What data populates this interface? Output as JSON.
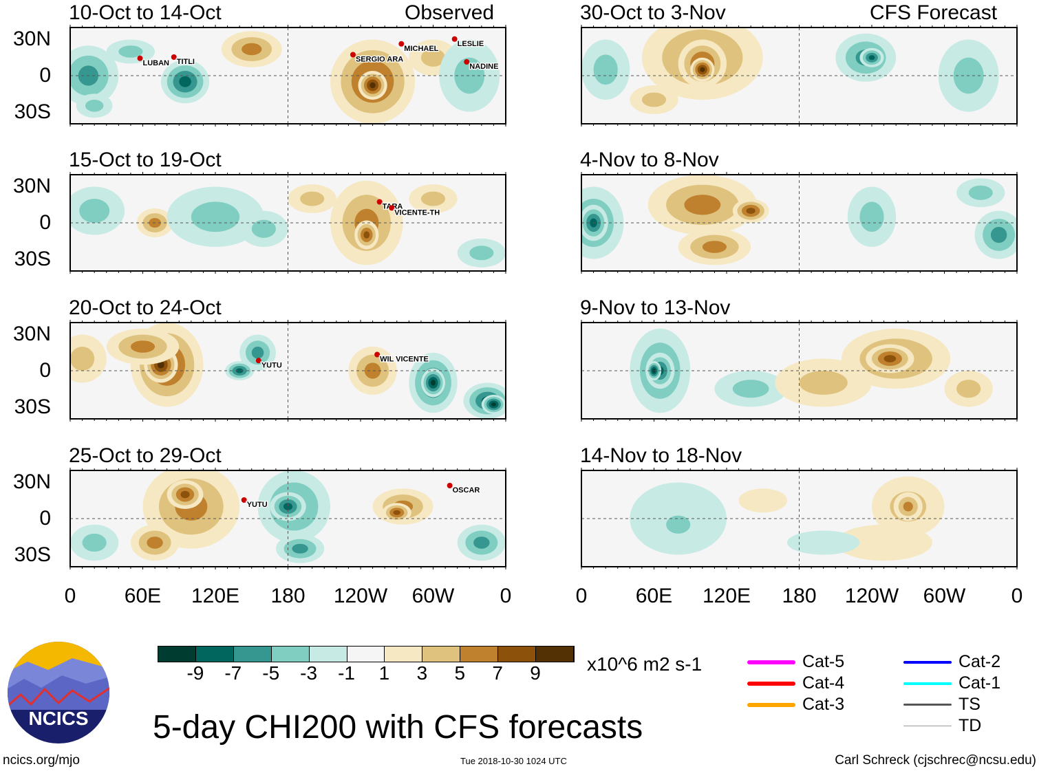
{
  "header": {
    "left_label": "Observed",
    "right_label": "CFS Forecast"
  },
  "axes": {
    "y_ticks": [
      "30N",
      "0",
      "30S"
    ],
    "x_ticks": [
      "0",
      "60E",
      "120E",
      "180",
      "120W",
      "60W",
      "0"
    ]
  },
  "colorbar": {
    "colors": [
      "#003C30",
      "#01665E",
      "#35978F",
      "#80CDC1",
      "#C7EAE5",
      "#F5F5F5",
      "#F6E8C3",
      "#DFC27D",
      "#BF812D",
      "#8C510A",
      "#543005"
    ],
    "labels": [
      "-9",
      "-7",
      "-5",
      "-3",
      "-1",
      "1",
      "3",
      "5",
      "7",
      "9"
    ],
    "units": "x10^6 m2 s-1"
  },
  "title": "5-day CHI200 with CFS forecasts",
  "footer": {
    "site": "ncics.org/mjo",
    "timestamp": "Tue 2018-10-30 1024 UTC",
    "author": "Carl Schreck (cjschrec@ncsu.edu)",
    "logo_text": "NCICS"
  },
  "storm_legend": [
    {
      "label": "Cat-5",
      "color": "#FF00FF",
      "width": 6
    },
    {
      "label": "Cat-4",
      "color": "#FF0000",
      "width": 6
    },
    {
      "label": "Cat-3",
      "color": "#FFA500",
      "width": 6
    },
    {
      "label": "Cat-2",
      "color": "#0000FF",
      "width": 4
    },
    {
      "label": "Cat-1",
      "color": "#00FFFF",
      "width": 4
    },
    {
      "label": "TS",
      "color": "#555555",
      "width": 3
    },
    {
      "label": "TD",
      "color": "#999999",
      "width": 1
    }
  ],
  "chart_data": {
    "type": "heatmap",
    "xlim": [
      0,
      360
    ],
    "ylim": [
      -40,
      40
    ],
    "panels": [
      {
        "title": "10-Oct to 14-Oct",
        "source": "Observed",
        "blobs": [
          [
            15,
            0,
            25,
            25,
            -5
          ],
          [
            95,
            -5,
            20,
            18,
            -7
          ],
          [
            50,
            20,
            20,
            10,
            -3
          ],
          [
            150,
            22,
            25,
            15,
            5
          ],
          [
            250,
            -5,
            35,
            35,
            7
          ],
          [
            250,
            -8,
            12,
            12,
            9
          ],
          [
            300,
            15,
            20,
            15,
            3
          ],
          [
            330,
            0,
            25,
            30,
            -3
          ],
          [
            20,
            -25,
            15,
            10,
            -3
          ]
        ],
        "storms": [
          {
            "name": "LUBAN",
            "lon": 60,
            "lat": 11
          },
          {
            "name": "TITLI",
            "lon": 88,
            "lat": 12
          },
          {
            "name": "MICHAEL",
            "lon": 276,
            "lat": 23
          },
          {
            "name": "SERGIO ARA",
            "lon": 236,
            "lat": 14
          },
          {
            "name": "LESLIE",
            "lon": 320,
            "lat": 27
          },
          {
            "name": "NADINE",
            "lon": 330,
            "lat": 8
          }
        ]
      },
      {
        "title": "15-Oct to 19-Oct",
        "source": "Observed",
        "blobs": [
          [
            20,
            10,
            25,
            20,
            -3
          ],
          [
            70,
            0,
            15,
            12,
            5
          ],
          [
            120,
            5,
            40,
            25,
            -3
          ],
          [
            160,
            -5,
            20,
            15,
            -3
          ],
          [
            245,
            0,
            30,
            35,
            5
          ],
          [
            245,
            -10,
            10,
            12,
            7
          ],
          [
            300,
            20,
            20,
            12,
            3
          ],
          [
            200,
            20,
            20,
            12,
            3
          ],
          [
            340,
            -25,
            20,
            12,
            -3
          ]
        ],
        "storms": [
          {
            "name": "TARA",
            "lon": 258,
            "lat": 14
          },
          {
            "name": "VICENTE-TH",
            "lon": 268,
            "lat": 9
          }
        ]
      },
      {
        "title": "20-Oct to 24-Oct",
        "source": "Observed",
        "blobs": [
          [
            80,
            5,
            30,
            35,
            7
          ],
          [
            75,
            5,
            14,
            15,
            9
          ],
          [
            60,
            20,
            30,
            15,
            5
          ],
          [
            155,
            15,
            15,
            15,
            -5
          ],
          [
            140,
            0,
            12,
            8,
            -7
          ],
          [
            250,
            0,
            20,
            20,
            5
          ],
          [
            300,
            -10,
            20,
            25,
            -7
          ],
          [
            300,
            -10,
            10,
            12,
            -9
          ],
          [
            345,
            -25,
            20,
            15,
            -7
          ],
          [
            350,
            -28,
            10,
            8,
            -9
          ],
          [
            10,
            10,
            20,
            20,
            3
          ]
        ],
        "storms": [
          {
            "name": "YUTU",
            "lon": 158,
            "lat": 5
          },
          {
            "name": "WIL VICENTE",
            "lon": 256,
            "lat": 10
          }
        ]
      },
      {
        "title": "25-Oct to 29-Oct",
        "source": "Observed",
        "blobs": [
          [
            100,
            10,
            40,
            35,
            5
          ],
          [
            95,
            20,
            15,
            12,
            7
          ],
          [
            70,
            -20,
            20,
            15,
            5
          ],
          [
            185,
            10,
            30,
            30,
            -5
          ],
          [
            180,
            10,
            15,
            12,
            -7
          ],
          [
            275,
            10,
            25,
            15,
            5
          ],
          [
            270,
            5,
            12,
            8,
            7
          ],
          [
            190,
            -25,
            20,
            12,
            -5
          ],
          [
            340,
            -20,
            20,
            15,
            -5
          ],
          [
            20,
            -20,
            20,
            15,
            -3
          ]
        ],
        "storms": [
          {
            "name": "YUTU",
            "lon": 146,
            "lat": 12
          },
          {
            "name": "OSCAR",
            "lon": 316,
            "lat": 24
          }
        ]
      },
      {
        "title": "30-Oct to 3-Nov",
        "source": "CFS Forecast",
        "blobs": [
          [
            100,
            15,
            50,
            35,
            5
          ],
          [
            100,
            10,
            20,
            20,
            7
          ],
          [
            100,
            5,
            10,
            10,
            9
          ],
          [
            60,
            -20,
            20,
            12,
            3
          ],
          [
            235,
            15,
            25,
            20,
            -5
          ],
          [
            240,
            15,
            10,
            8,
            -7
          ],
          [
            20,
            5,
            20,
            25,
            -3
          ],
          [
            320,
            0,
            25,
            30,
            -3
          ]
        ],
        "storms": []
      },
      {
        "title": "4-Nov to 8-Nov",
        "source": "CFS Forecast",
        "blobs": [
          [
            10,
            0,
            25,
            30,
            -5
          ],
          [
            10,
            0,
            12,
            15,
            -7
          ],
          [
            100,
            15,
            45,
            25,
            5
          ],
          [
            140,
            10,
            15,
            10,
            7
          ],
          [
            110,
            -20,
            30,
            15,
            5
          ],
          [
            240,
            5,
            20,
            25,
            -3
          ],
          [
            345,
            -10,
            20,
            20,
            -5
          ],
          [
            330,
            25,
            20,
            12,
            -3
          ]
        ],
        "storms": []
      },
      {
        "title": "9-Nov to 13-Nov",
        "source": "CFS Forecast",
        "blobs": [
          [
            65,
            0,
            25,
            35,
            -5
          ],
          [
            65,
            0,
            12,
            15,
            -7
          ],
          [
            60,
            0,
            6,
            8,
            -9
          ],
          [
            260,
            10,
            45,
            25,
            5
          ],
          [
            255,
            10,
            20,
            12,
            7
          ],
          [
            140,
            -15,
            30,
            15,
            -3
          ],
          [
            200,
            -10,
            40,
            20,
            3
          ],
          [
            320,
            -15,
            20,
            15,
            3
          ]
        ],
        "storms": []
      },
      {
        "title": "14-Nov to 18-Nov",
        "source": "CFS Forecast",
        "blobs": [
          [
            80,
            0,
            40,
            30,
            -1
          ],
          [
            80,
            -5,
            20,
            15,
            -3
          ],
          [
            270,
            10,
            30,
            25,
            3
          ],
          [
            270,
            10,
            12,
            12,
            5
          ],
          [
            250,
            -20,
            40,
            15,
            1
          ],
          [
            150,
            15,
            20,
            10,
            1
          ],
          [
            200,
            -20,
            30,
            10,
            -1
          ]
        ],
        "storms": []
      }
    ]
  }
}
